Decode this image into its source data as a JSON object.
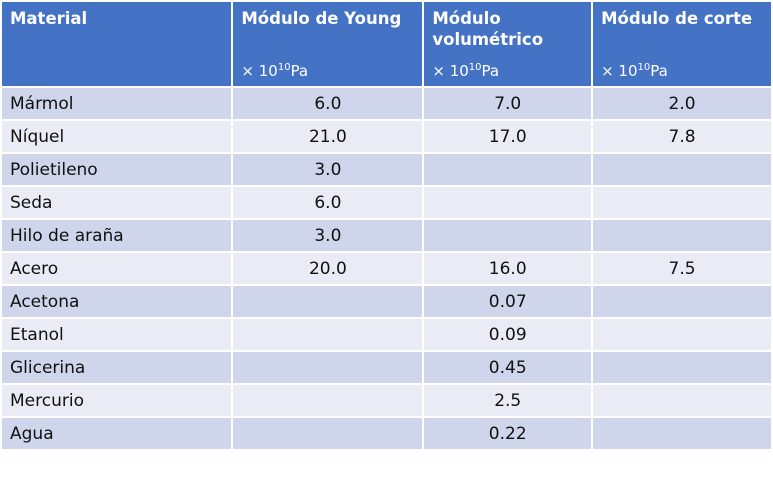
{
  "header": {
    "material": "Material",
    "young": "Módulo de Young",
    "bulk_line1": "Módulo",
    "bulk_line2": "volumétrico",
    "shear": "Módulo de corte",
    "unit_prefix": "× 10",
    "unit_exp": "10",
    "unit_suffix": "Pa"
  },
  "rows": [
    {
      "material": "Mármol",
      "young": "6.0",
      "bulk": "7.0",
      "shear": "2.0"
    },
    {
      "material": "Níquel",
      "young": "21.0",
      "bulk": "17.0",
      "shear": "7.8"
    },
    {
      "material": "Polietileno",
      "young": "3.0",
      "bulk": "",
      "shear": ""
    },
    {
      "material": "Seda",
      "young": "6.0",
      "bulk": "",
      "shear": ""
    },
    {
      "material": "Hilo de araña",
      "young": "3.0",
      "bulk": "",
      "shear": ""
    },
    {
      "material": "Acero",
      "young": "20.0",
      "bulk": "16.0",
      "shear": "7.5"
    },
    {
      "material": "Acetona",
      "young": "",
      "bulk": "0.07",
      "shear": ""
    },
    {
      "material": "Etanol",
      "young": "",
      "bulk": "0.09",
      "shear": ""
    },
    {
      "material": "Glicerina",
      "young": "",
      "bulk": "0.45",
      "shear": ""
    },
    {
      "material": "Mercurio",
      "young": "",
      "bulk": "2.5",
      "shear": ""
    },
    {
      "material": "Agua",
      "young": "",
      "bulk": "0.22",
      "shear": ""
    }
  ]
}
